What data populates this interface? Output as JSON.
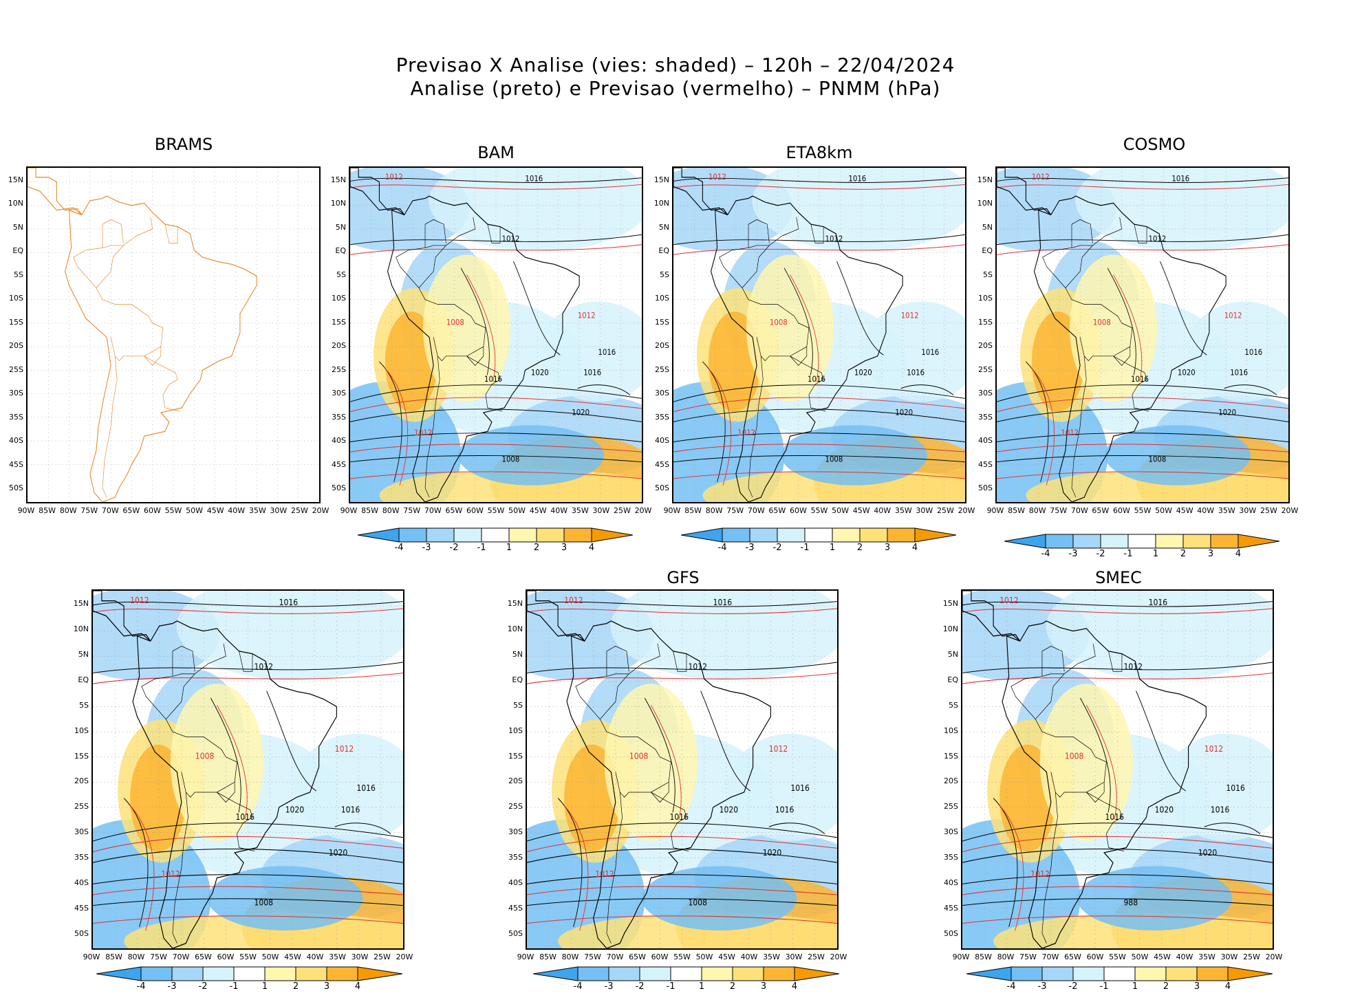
{
  "header": {
    "line1": "Previsao X Analise (vies: shaded) – 120h – 22/04/2024",
    "line2": "Analise (preto) e Previsao (vermelho) – PNMM (hPa)"
  },
  "axes": {
    "lat_labels": [
      "15N",
      "10N",
      "5N",
      "EQ",
      "5S",
      "10S",
      "15S",
      "20S",
      "25S",
      "30S",
      "35S",
      "40S",
      "45S",
      "50S"
    ],
    "lon_labels": [
      "90W",
      "85W",
      "80W",
      "75W",
      "70W",
      "65W",
      "60W",
      "55W",
      "50W",
      "45W",
      "40W",
      "35W",
      "30W",
      "25W",
      "20W"
    ]
  },
  "colorbar": {
    "labels": [
      "-4",
      "-3",
      "-2",
      "-1",
      "1",
      "2",
      "3",
      "4"
    ],
    "colors": [
      "#3ea4ee",
      "#74bff3",
      "#a6d6f8",
      "#d6f2fb",
      "#ffffff",
      "#fff6b0",
      "#fde27a",
      "#fbb533",
      "#f59a00"
    ]
  },
  "colors": {
    "analysis": "#000000",
    "forecast": "#e03030",
    "coast_brams": "#e58a2a"
  },
  "panels": [
    {
      "title": "BRAMS",
      "has_colorbar": false
    },
    {
      "title": "BAM",
      "has_colorbar": true,
      "labels": [
        "1012",
        "1016",
        "1012",
        "1008",
        "1020",
        "1016",
        "1012",
        "1016",
        "1020",
        "1012",
        "1008",
        "1016"
      ]
    },
    {
      "title": "ETA8km",
      "has_colorbar": true,
      "labels": [
        "1012",
        "1016",
        "1012",
        "1008",
        "1020",
        "1016",
        "1012",
        "1016",
        "1020",
        "1012",
        "1008",
        "1016"
      ]
    },
    {
      "title": "COSMO",
      "has_colorbar": true,
      "labels": [
        "1012",
        "1016",
        "1012",
        "1008",
        "1020",
        "1016",
        "1012",
        "1016",
        "1020",
        "1012",
        "1008",
        "1016"
      ]
    },
    {
      "title": "",
      "has_colorbar": true,
      "labels": [
        "1012",
        "1016",
        "1012",
        "1008",
        "1020",
        "1016",
        "1012",
        "1016",
        "1020",
        "1012",
        "1008",
        "1016"
      ]
    },
    {
      "title": "GFS",
      "has_colorbar": true,
      "labels": [
        "1012",
        "1016",
        "1012",
        "1008",
        "1020",
        "1016",
        "1012",
        "1016",
        "1020",
        "1012",
        "1008",
        "1016"
      ]
    },
    {
      "title": "SMEC",
      "has_colorbar": true,
      "labels": [
        "1012",
        "1016",
        "1012",
        "1008",
        "1020",
        "1016",
        "1012",
        "1016",
        "1020",
        "1012",
        "988",
        "1016"
      ]
    }
  ]
}
